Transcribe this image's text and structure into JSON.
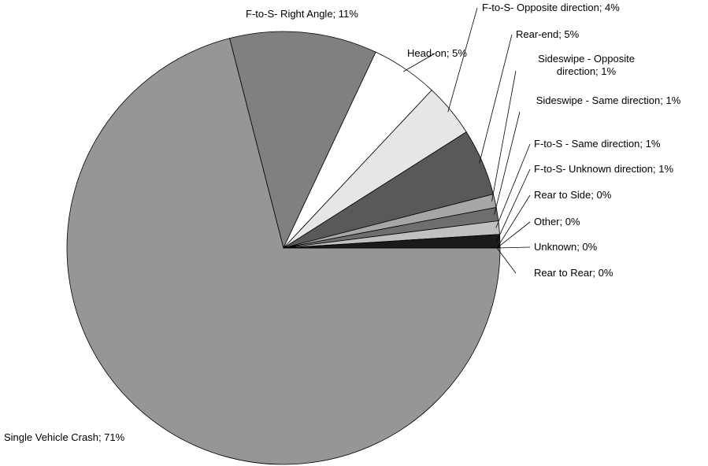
{
  "chart_data": {
    "type": "pie",
    "categories": [
      "Single Vehicle Crash; 71%",
      "F-to-S- Right Angle; 11%",
      "Head-on; 5%",
      "F-to-S- Opposite direction; 4%",
      "Rear-end; 5%",
      "Sideswipe - Opposite direction; 1%",
      "Sideswipe - Same direction; 1%",
      "F-to-S - Same direction; 1%",
      "F-to-S- Unknown direction; 1%",
      "Rear to Side; 0%",
      "Other; 0%",
      "Unknown; 0%",
      "Rear to Rear; 0%"
    ],
    "values": [
      71,
      11,
      5,
      4,
      5,
      1,
      1,
      1,
      1,
      0,
      0,
      0,
      0
    ],
    "colors": [
      "#969696",
      "#808080",
      "#ffffff",
      "#e6e6e6",
      "#595959",
      "#a6a6a6",
      "#6e6e6e",
      "#c0c0c0",
      "#1a1a1a",
      "#ffffff",
      "#b0b0b0",
      "#000000",
      "#ffffff"
    ]
  }
}
